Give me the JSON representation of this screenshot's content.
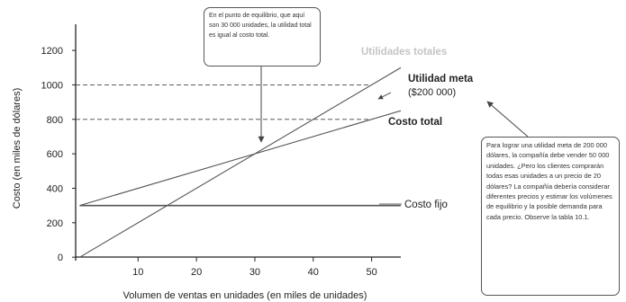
{
  "chart_data": {
    "type": "line",
    "xlabel": "Volumen de ventas en unidades (en miles de unidades)",
    "ylabel": "Costo (en miles de dólares)",
    "xlim": [
      -1,
      55
    ],
    "ylim": [
      -20,
      1310
    ],
    "x_ticks": [
      10,
      20,
      30,
      40,
      50
    ],
    "y_ticks": [
      0,
      200,
      400,
      600,
      800,
      1000,
      1200
    ],
    "series": [
      {
        "name": "Utilidades totales",
        "x": [
          0,
          55
        ],
        "y": [
          0,
          1100
        ],
        "color": "#555555",
        "style": "solid"
      },
      {
        "name": "Costo total",
        "x": [
          0,
          55
        ],
        "y": [
          300,
          850
        ],
        "color": "#555555",
        "style": "solid"
      },
      {
        "name": "Costo fijo",
        "x": [
          0,
          55
        ],
        "y": [
          300,
          300
        ],
        "color": "#555555",
        "style": "solid"
      }
    ],
    "reference_lines": [
      {
        "y": 1000,
        "style": "dashed"
      },
      {
        "y": 800,
        "style": "dashed"
      }
    ],
    "labels": {
      "total_revenue": "Utilidades totales",
      "target_profit": "Utilidad meta",
      "target_profit_value": "($200 000)",
      "total_cost": "Costo total",
      "fixed_cost": "Costo fijo"
    },
    "annotations": {
      "break_even": "En el punto de equilibrio, que aquí son 30 000 unidades, la utilidad total es igual al costo total.",
      "target": "Para lograr una utilidad meta de 200 000 dólares, la compañía debe vender 50 000 unidades. ¿Pero los clientes comprarán todas esas unidades a un precio de 20 dólares? La compañía debería considerar diferentes precios y estimar los volúmenes de equilibrio y la posible demanda para cada precio. Observe la tabla 10.1."
    }
  }
}
